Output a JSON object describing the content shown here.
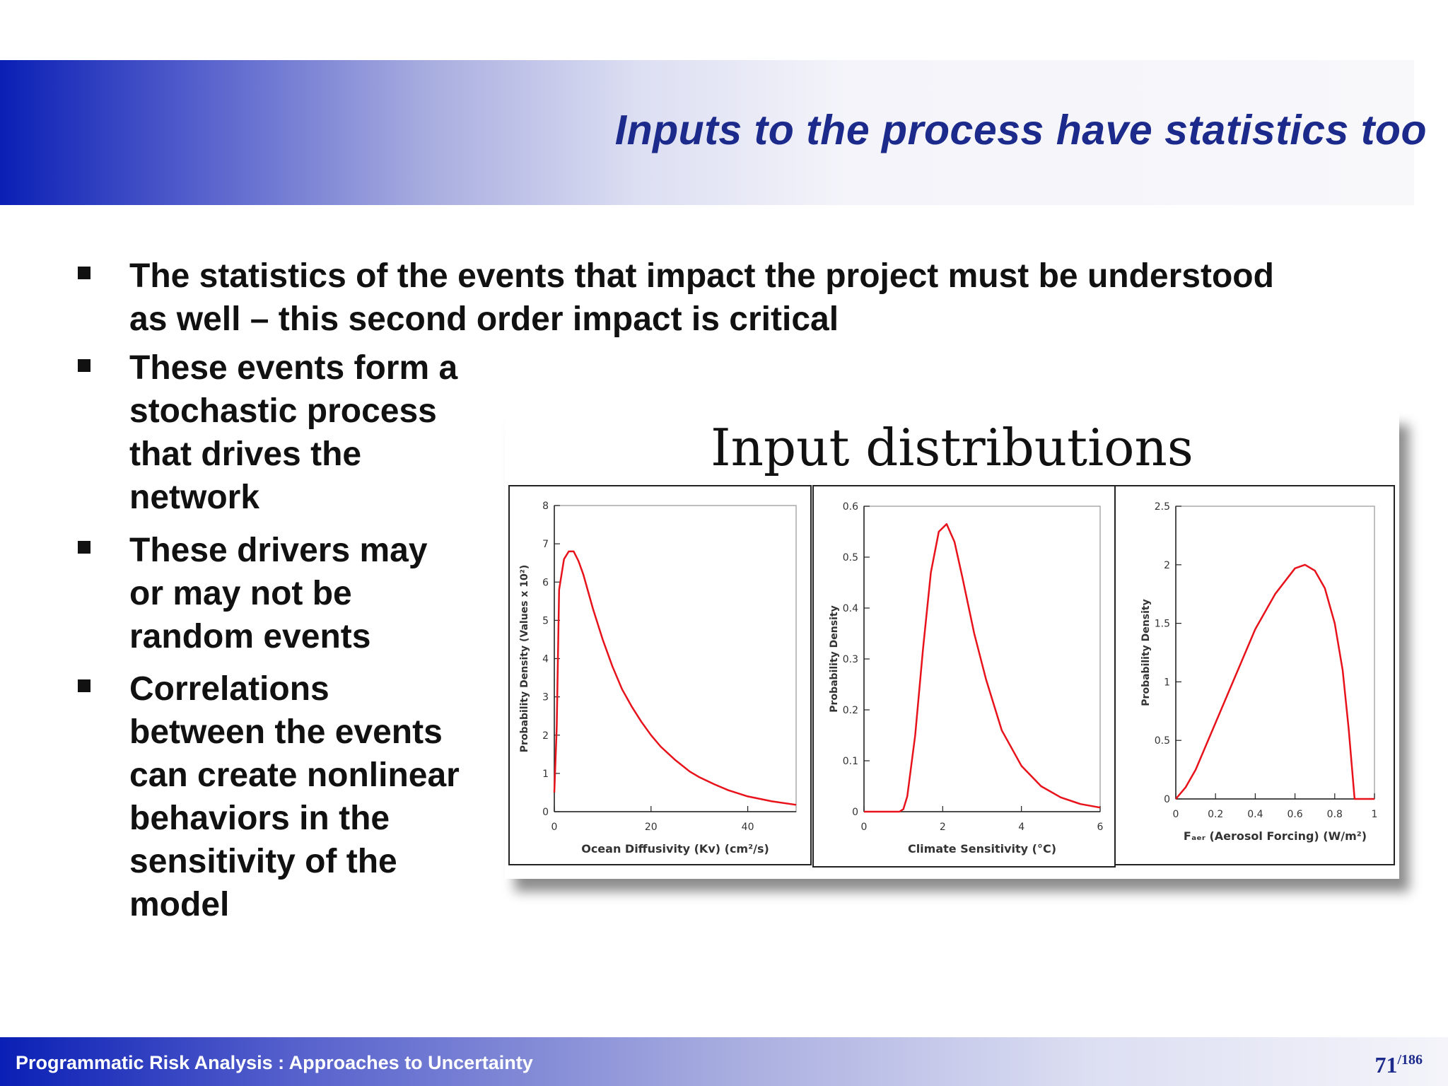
{
  "slide": {
    "title": "Inputs to the process have statistics too",
    "bullets": [
      [
        "The statistics of the events that impact the project must be understood",
        "as well – this second order impact is critical"
      ],
      [
        "These events form a",
        "stochastic process",
        "that drives the",
        "network"
      ],
      [
        "These drivers may",
        "or may not be",
        "random events"
      ],
      [
        "Correlations",
        "between the events",
        "can create nonlinear",
        "behaviors in the",
        "sensitivity of the",
        "model"
      ]
    ]
  },
  "figure": {
    "title": "Input distributions"
  },
  "footer": {
    "text": "Programmatic Risk Analysis  : Approaches to Uncertainty",
    "page_current": "71",
    "page_total": "/186"
  },
  "colors": {
    "header_title": "#1c2a8c",
    "curve": "#e8121b",
    "header_gradient_start": "#0a1fb5"
  },
  "chart_data": [
    {
      "type": "line",
      "xlabel": "Ocean Diffusivity (Kv) (cm²/s)",
      "ylabel": "Probability Density (Values x 10²)",
      "xlim": [
        0,
        50
      ],
      "ylim": [
        0,
        8
      ],
      "xticks": [
        "0",
        "20",
        "40"
      ],
      "yticks": [
        "0",
        "1",
        "2",
        "3",
        "4",
        "5",
        "6",
        "7",
        "8"
      ],
      "series": [
        {
          "x": [
            0,
            0.5,
            1,
            2,
            3,
            4,
            5,
            6,
            8,
            10,
            12,
            14,
            16,
            18,
            20,
            22,
            25,
            28,
            30,
            33,
            36,
            40,
            45,
            50
          ],
          "y": [
            0.5,
            2.2,
            5.8,
            6.6,
            6.8,
            6.8,
            6.55,
            6.2,
            5.3,
            4.5,
            3.8,
            3.2,
            2.75,
            2.35,
            2.0,
            1.7,
            1.35,
            1.05,
            0.9,
            0.72,
            0.56,
            0.4,
            0.27,
            0.18
          ]
        }
      ]
    },
    {
      "type": "line",
      "xlabel": "Climate Sensitivity (°C)",
      "ylabel": "Probability Density",
      "xlim": [
        0,
        6
      ],
      "ylim": [
        0,
        0.6
      ],
      "xticks": [
        "0",
        "2",
        "4",
        "6"
      ],
      "yticks": [
        "0",
        "0.1",
        "0.2",
        "0.3",
        "0.4",
        "0.5",
        "0.6"
      ],
      "series": [
        {
          "x": [
            0,
            0.5,
            0.9,
            1.0,
            1.1,
            1.3,
            1.5,
            1.7,
            1.9,
            2.1,
            2.3,
            2.5,
            2.8,
            3.1,
            3.5,
            4.0,
            4.5,
            5.0,
            5.5,
            6.0
          ],
          "y": [
            0,
            0,
            0,
            0.005,
            0.03,
            0.15,
            0.32,
            0.47,
            0.55,
            0.565,
            0.53,
            0.46,
            0.35,
            0.26,
            0.16,
            0.09,
            0.05,
            0.028,
            0.015,
            0.008
          ]
        }
      ]
    },
    {
      "type": "line",
      "xlabel": "Fₐₑᵣ (Aerosol Forcing) (W/m²)",
      "ylabel": "Probability Density",
      "xlim": [
        0,
        1
      ],
      "ylim": [
        0,
        2.5
      ],
      "xticks": [
        "0",
        "0.2",
        "0.4",
        "0.6",
        "0.8",
        "1"
      ],
      "yticks": [
        "0",
        "0.5",
        "1",
        "1.5",
        "2",
        "2.5"
      ],
      "series": [
        {
          "x": [
            0,
            0.05,
            0.1,
            0.2,
            0.3,
            0.4,
            0.5,
            0.6,
            0.65,
            0.7,
            0.75,
            0.8,
            0.84,
            0.87,
            0.89,
            0.9,
            0.92,
            1.0
          ],
          "y": [
            0,
            0.1,
            0.25,
            0.65,
            1.05,
            1.45,
            1.75,
            1.97,
            2.0,
            1.95,
            1.8,
            1.5,
            1.1,
            0.6,
            0.2,
            0,
            0,
            0
          ]
        }
      ]
    }
  ]
}
